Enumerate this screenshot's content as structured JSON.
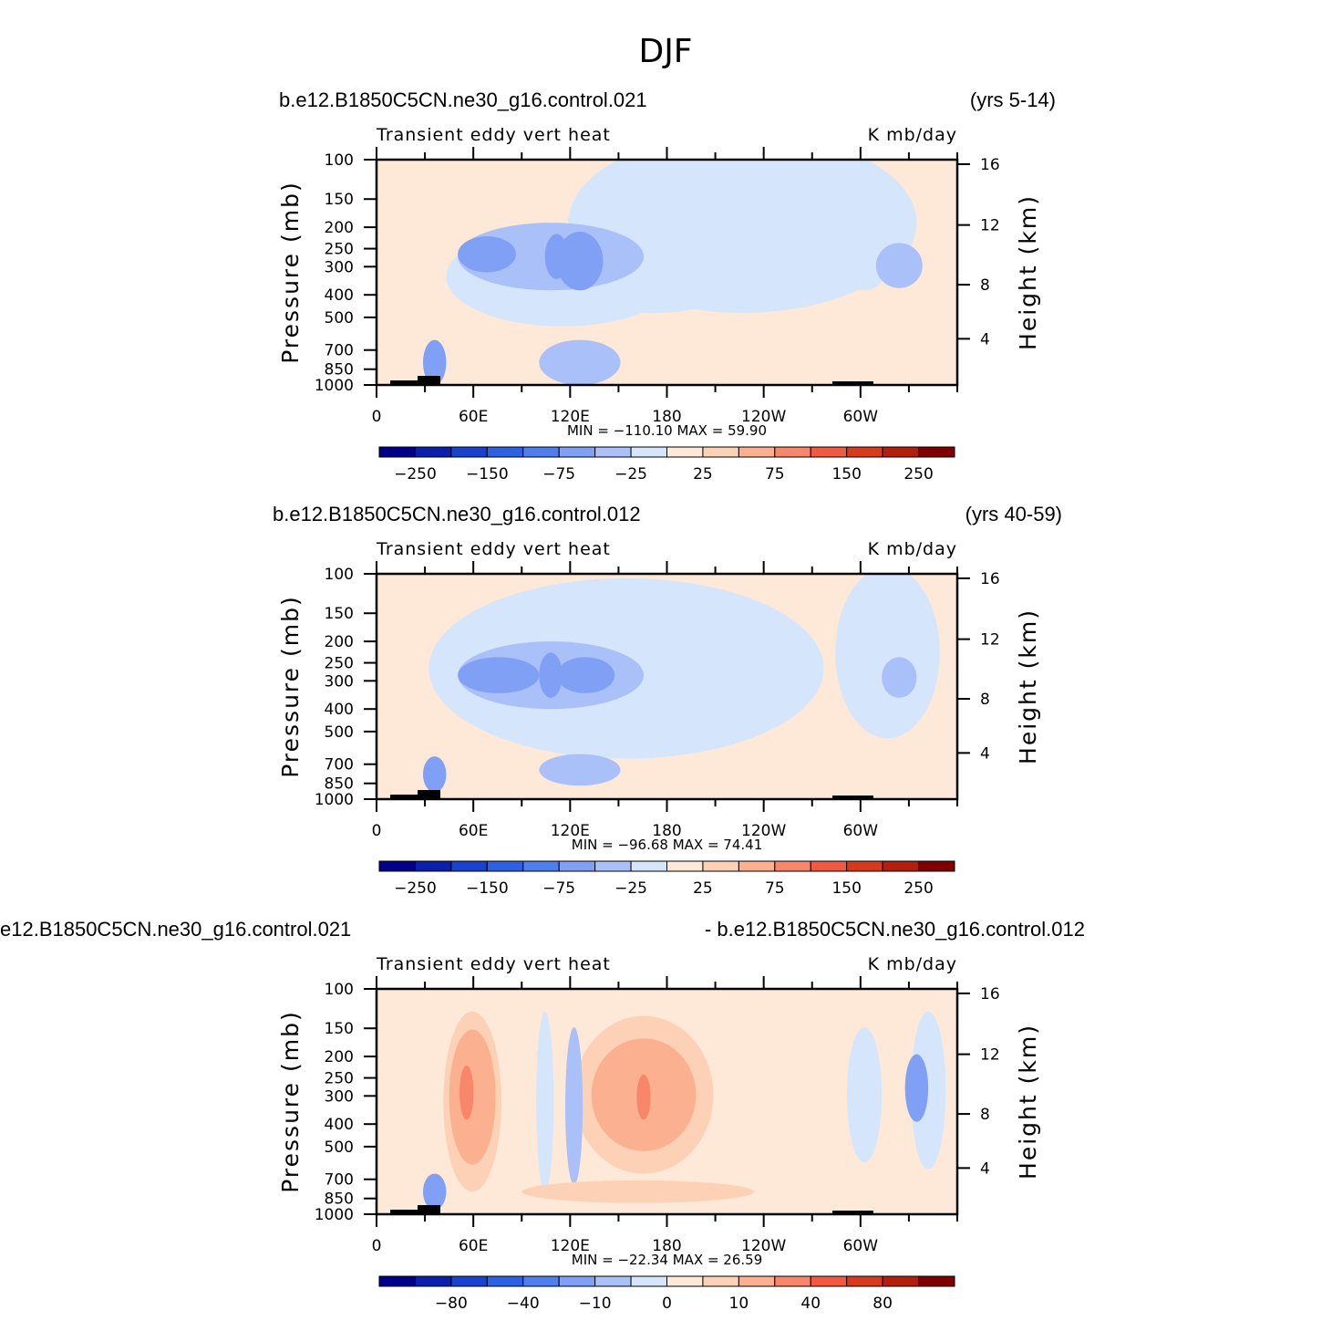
{
  "figure": {
    "title": "DJF"
  },
  "colors": {
    "panel_bg": "#fee9d8",
    "axis": "#000000"
  },
  "chart_data": [
    {
      "type": "heatmap",
      "case_label": "b.e12.B1850C5CN.ne30_g16.control.021",
      "years_label": "(yrs 5-14)",
      "variable_label": "Transient eddy vert heat",
      "units_label": "K mb/day",
      "ylabel": "Pressure (mb)",
      "ylabel_right": "Height (km)",
      "x_tick_labels": [
        "0",
        "60E",
        "120E",
        "180",
        "120W",
        "60W"
      ],
      "y_tick_labels": [
        "100",
        "150",
        "200",
        "250",
        "300",
        "400",
        "500",
        "700",
        "850",
        "1000"
      ],
      "y_right_tick_labels": [
        "16",
        "12",
        "8",
        "4"
      ],
      "stats_text": "MIN = −110.10   MAX =   59.90",
      "min": -110.1,
      "max": 59.9,
      "colorbar": {
        "colors": [
          "#00008b",
          "#0a1fae",
          "#1842cf",
          "#2c60e5",
          "#4f7fef",
          "#7fa0f4",
          "#a9c0f8",
          "#d5e5fc",
          "#fee9d8",
          "#fdd1b6",
          "#fbb08f",
          "#f8866a",
          "#f15a41",
          "#d83a1d",
          "#b31f0b",
          "#800000"
        ],
        "tick_labels": [
          "−250",
          "−150",
          "−75",
          "−25",
          "25",
          "75",
          "150",
          "250"
        ]
      }
    },
    {
      "type": "heatmap",
      "case_label": "b.e12.B1850C5CN.ne30_g16.control.012",
      "years_label": "(yrs 40-59)",
      "variable_label": "Transient eddy vert heat",
      "units_label": "K mb/day",
      "ylabel": "Pressure (mb)",
      "ylabel_right": "Height (km)",
      "x_tick_labels": [
        "0",
        "60E",
        "120E",
        "180",
        "120W",
        "60W"
      ],
      "y_tick_labels": [
        "100",
        "150",
        "200",
        "250",
        "300",
        "400",
        "500",
        "700",
        "850",
        "1000"
      ],
      "y_right_tick_labels": [
        "16",
        "12",
        "8",
        "4"
      ],
      "stats_text": "MIN = −96.68   MAX =   74.41",
      "min": -96.68,
      "max": 74.41,
      "colorbar": {
        "colors": [
          "#00008b",
          "#0a1fae",
          "#1842cf",
          "#2c60e5",
          "#4f7fef",
          "#7fa0f4",
          "#a9c0f8",
          "#d5e5fc",
          "#fee9d8",
          "#fdd1b6",
          "#fbb08f",
          "#f8866a",
          "#f15a41",
          "#d83a1d",
          "#b31f0b",
          "#800000"
        ],
        "tick_labels": [
          "−250",
          "−150",
          "−75",
          "−25",
          "25",
          "75",
          "150",
          "250"
        ]
      }
    },
    {
      "type": "heatmap",
      "case_label": "e12.B1850C5CN.ne30_g16.control.021",
      "years_label": "- b.e12.B1850C5CN.ne30_g16.control.012",
      "variable_label": "Transient eddy vert heat",
      "units_label": "K mb/day",
      "ylabel": "Pressure (mb)",
      "ylabel_right": "Height (km)",
      "x_tick_labels": [
        "0",
        "60E",
        "120E",
        "180",
        "120W",
        "60W"
      ],
      "y_tick_labels": [
        "100",
        "150",
        "200",
        "250",
        "300",
        "400",
        "500",
        "700",
        "850",
        "1000"
      ],
      "y_right_tick_labels": [
        "16",
        "12",
        "8",
        "4"
      ],
      "stats_text": "MIN = −22.34   MAX =   26.59",
      "min": -22.34,
      "max": 26.59,
      "colorbar": {
        "colors": [
          "#00008b",
          "#0a1fae",
          "#1842cf",
          "#2c60e5",
          "#4f7fef",
          "#7fa0f4",
          "#a9c0f8",
          "#d5e5fc",
          "#fee9d8",
          "#fdd1b6",
          "#fbb08f",
          "#f8866a",
          "#f15a41",
          "#d83a1d",
          "#b31f0b",
          "#800000"
        ],
        "tick_labels": [
          "−80",
          "−40",
          "−10",
          "0",
          "10",
          "40",
          "80"
        ]
      }
    }
  ]
}
